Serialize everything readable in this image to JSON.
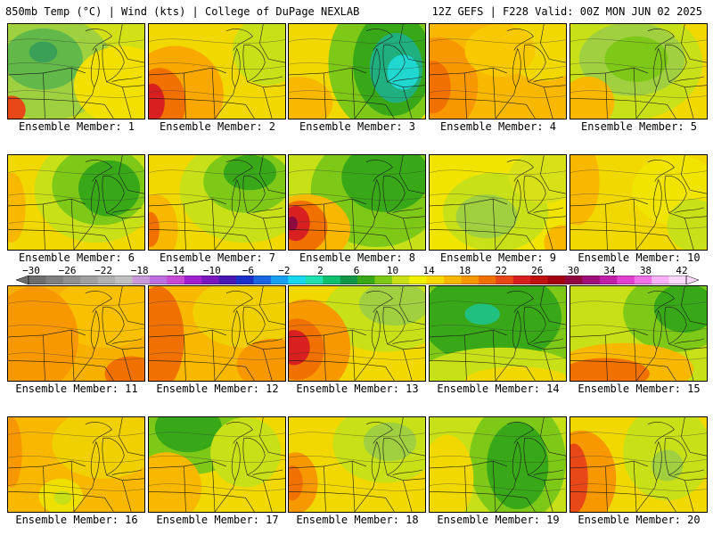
{
  "header": {
    "left": "850mb Temp (°C) | Wind (kts) | College of DuPage NEXLAB",
    "right": "12Z GEFS | F228 Valid: 00Z MON JUN 02 2025"
  },
  "colorbar": {
    "tick_labels": [
      "-30",
      "-26",
      "-22",
      "-18",
      "-14",
      "-10",
      "-6",
      "-2",
      "2",
      "6",
      "10",
      "14",
      "18",
      "22",
      "26",
      "30",
      "34",
      "38",
      "42"
    ],
    "colors": [
      "#6e6e6e",
      "#7f7f7f",
      "#909090",
      "#a0a0a0",
      "#b0b0b0",
      "#c0c0c0",
      "#c89bd8",
      "#bd6fe0",
      "#c64ad6",
      "#a020d0",
      "#7a18c0",
      "#4818b0",
      "#1a30c8",
      "#1a66e0",
      "#18a0f0",
      "#18d8f0",
      "#20e0b0",
      "#10c070",
      "#109848",
      "#38a818",
      "#7ec818",
      "#c8e018",
      "#f0f000",
      "#f8d800",
      "#f8b800",
      "#f89800",
      "#f07000",
      "#e84818",
      "#d82020",
      "#c01010",
      "#a00010",
      "#900840",
      "#a0107a",
      "#c020a8",
      "#e040d0",
      "#f070e8",
      "#f8b0f8",
      "#ffd8ff"
    ]
  },
  "panels": [
    {
      "label": "Ensemble Member: 1",
      "bg": "#d2e018",
      "blobs": [
        {
          "cx": 45,
          "cy": 50,
          "rx": 75,
          "ry": 60,
          "c": "#9fd040"
        },
        {
          "cx": 40,
          "cy": 40,
          "rx": 45,
          "ry": 35,
          "c": "#62b848"
        },
        {
          "cx": 40,
          "cy": 32,
          "rx": 16,
          "ry": 12,
          "c": "#3aa058"
        },
        {
          "cx": 130,
          "cy": 70,
          "rx": 55,
          "ry": 45,
          "c": "#f2e000"
        },
        {
          "cx": 4,
          "cy": 98,
          "rx": 16,
          "ry": 16,
          "c": "#e84818"
        }
      ]
    },
    {
      "label": "Ensemble Member: 2",
      "bg": "#f0d800",
      "blobs": [
        {
          "cx": 30,
          "cy": 80,
          "rx": 55,
          "ry": 55,
          "c": "#f8a800"
        },
        {
          "cx": 12,
          "cy": 90,
          "rx": 30,
          "ry": 40,
          "c": "#f07000"
        },
        {
          "cx": 4,
          "cy": 90,
          "rx": 14,
          "ry": 22,
          "c": "#d82020"
        },
        {
          "cx": 135,
          "cy": 30,
          "rx": 40,
          "ry": 40,
          "c": "#c8e018"
        }
      ]
    },
    {
      "label": "Ensemble Member: 3",
      "bg": "#f0d800",
      "blobs": [
        {
          "cx": 110,
          "cy": 45,
          "rx": 65,
          "ry": 80,
          "c": "#7ec818"
        },
        {
          "cx": 118,
          "cy": 45,
          "rx": 45,
          "ry": 60,
          "c": "#38a818"
        },
        {
          "cx": 122,
          "cy": 50,
          "rx": 30,
          "ry": 40,
          "c": "#20b080"
        },
        {
          "cx": 130,
          "cy": 55,
          "rx": 18,
          "ry": 20,
          "c": "#20d8d0"
        },
        {
          "cx": 10,
          "cy": 90,
          "rx": 40,
          "ry": 30,
          "c": "#f8b800"
        }
      ]
    },
    {
      "label": "Ensemble Member: 4",
      "bg": "#f8b800",
      "blobs": [
        {
          "cx": 10,
          "cy": 70,
          "rx": 45,
          "ry": 55,
          "c": "#f89800"
        },
        {
          "cx": 4,
          "cy": 72,
          "rx": 20,
          "ry": 30,
          "c": "#f07000"
        },
        {
          "cx": 130,
          "cy": 25,
          "rx": 45,
          "ry": 40,
          "c": "#f0d800"
        },
        {
          "cx": 80,
          "cy": 30,
          "rx": 40,
          "ry": 30,
          "c": "#f8c800"
        }
      ]
    },
    {
      "label": "Ensemble Member: 5",
      "bg": "#f0d800",
      "blobs": [
        {
          "cx": 65,
          "cy": 45,
          "rx": 85,
          "ry": 65,
          "c": "#c8e018"
        },
        {
          "cx": 70,
          "cy": 40,
          "rx": 60,
          "ry": 42,
          "c": "#a0d040"
        },
        {
          "cx": 75,
          "cy": 40,
          "rx": 36,
          "ry": 26,
          "c": "#7ec818"
        },
        {
          "cx": 20,
          "cy": 90,
          "rx": 30,
          "ry": 30,
          "c": "#f8b800"
        }
      ]
    },
    {
      "label": "Ensemble Member: 6",
      "bg": "#f0d800",
      "blobs": [
        {
          "cx": 100,
          "cy": 40,
          "rx": 70,
          "ry": 60,
          "c": "#c8e018"
        },
        {
          "cx": 105,
          "cy": 35,
          "rx": 55,
          "ry": 45,
          "c": "#7ec818"
        },
        {
          "cx": 115,
          "cy": 38,
          "rx": 35,
          "ry": 32,
          "c": "#38a818"
        },
        {
          "cx": 4,
          "cy": 60,
          "rx": 16,
          "ry": 40,
          "c": "#f8b800"
        }
      ]
    },
    {
      "label": "Ensemble Member: 7",
      "bg": "#f0d800",
      "blobs": [
        {
          "cx": 110,
          "cy": 40,
          "rx": 75,
          "ry": 60,
          "c": "#c8e018"
        },
        {
          "cx": 112,
          "cy": 30,
          "rx": 50,
          "ry": 36,
          "c": "#7ec818"
        },
        {
          "cx": 115,
          "cy": 20,
          "rx": 30,
          "ry": 20,
          "c": "#38a818"
        },
        {
          "cx": 8,
          "cy": 85,
          "rx": 25,
          "ry": 40,
          "c": "#f8b800"
        },
        {
          "cx": 2,
          "cy": 85,
          "rx": 10,
          "ry": 20,
          "c": "#f07000"
        }
      ]
    },
    {
      "label": "Ensemble Member: 8",
      "bg": "#c8e018",
      "blobs": [
        {
          "cx": 100,
          "cy": 40,
          "rx": 75,
          "ry": 65,
          "c": "#7ec818"
        },
        {
          "cx": 110,
          "cy": 25,
          "rx": 50,
          "ry": 40,
          "c": "#38a818"
        },
        {
          "cx": 20,
          "cy": 85,
          "rx": 50,
          "ry": 40,
          "c": "#f8b800"
        },
        {
          "cx": 14,
          "cy": 82,
          "rx": 30,
          "ry": 30,
          "c": "#f07000"
        },
        {
          "cx": 8,
          "cy": 78,
          "rx": 16,
          "ry": 20,
          "c": "#d82020"
        },
        {
          "cx": 4,
          "cy": 78,
          "rx": 6,
          "ry": 8,
          "c": "#900840"
        }
      ]
    },
    {
      "label": "Ensemble Member: 9",
      "bg": "#f0e400",
      "blobs": [
        {
          "cx": 75,
          "cy": 65,
          "rx": 60,
          "ry": 45,
          "c": "#c8e018"
        },
        {
          "cx": 65,
          "cy": 70,
          "rx": 35,
          "ry": 25,
          "c": "#a0d040"
        },
        {
          "cx": 130,
          "cy": 25,
          "rx": 40,
          "ry": 30,
          "c": "#d8e018"
        },
        {
          "cx": 150,
          "cy": 100,
          "rx": 20,
          "ry": 20,
          "c": "#f8b800"
        }
      ]
    },
    {
      "label": "Ensemble Member: 10",
      "bg": "#f0d800",
      "blobs": [
        {
          "cx": 120,
          "cy": 40,
          "rx": 50,
          "ry": 40,
          "c": "#f0e400"
        },
        {
          "cx": 8,
          "cy": 30,
          "rx": 25,
          "ry": 50,
          "c": "#f8b800"
        },
        {
          "cx": 140,
          "cy": 80,
          "rx": 30,
          "ry": 30,
          "c": "#c8e018"
        }
      ]
    },
    {
      "label": "Ensemble Member: 11",
      "bg": "#f8b000",
      "blobs": [
        {
          "cx": 110,
          "cy": 30,
          "rx": 60,
          "ry": 40,
          "c": "#f8c000"
        },
        {
          "cx": 30,
          "cy": 60,
          "rx": 50,
          "ry": 60,
          "c": "#f89800"
        },
        {
          "cx": 140,
          "cy": 100,
          "rx": 30,
          "ry": 20,
          "c": "#f07000"
        }
      ]
    },
    {
      "label": "Ensemble Member: 12",
      "bg": "#f8b800",
      "blobs": [
        {
          "cx": 110,
          "cy": 30,
          "rx": 60,
          "ry": 40,
          "c": "#f0d000"
        },
        {
          "cx": 10,
          "cy": 60,
          "rx": 30,
          "ry": 60,
          "c": "#f07000"
        },
        {
          "cx": 140,
          "cy": 90,
          "rx": 40,
          "ry": 30,
          "c": "#f89800"
        }
      ]
    },
    {
      "label": "Ensemble Member: 13",
      "bg": "#f0d800",
      "blobs": [
        {
          "cx": 110,
          "cy": 30,
          "rx": 70,
          "ry": 45,
          "c": "#c8e018"
        },
        {
          "cx": 120,
          "cy": 20,
          "rx": 40,
          "ry": 25,
          "c": "#a0d040"
        },
        {
          "cx": 20,
          "cy": 70,
          "rx": 50,
          "ry": 55,
          "c": "#f89800"
        },
        {
          "cx": 10,
          "cy": 72,
          "rx": 30,
          "ry": 35,
          "c": "#f07000"
        },
        {
          "cx": 6,
          "cy": 70,
          "rx": 18,
          "ry": 20,
          "c": "#d82020"
        }
      ]
    },
    {
      "label": "Ensemble Member: 14",
      "bg": "#7ec818",
      "blobs": [
        {
          "cx": 70,
          "cy": 35,
          "rx": 80,
          "ry": 55,
          "c": "#38a818"
        },
        {
          "cx": 60,
          "cy": 32,
          "rx": 20,
          "ry": 12,
          "c": "#20c080"
        },
        {
          "cx": 80,
          "cy": 100,
          "rx": 90,
          "ry": 30,
          "c": "#c8e018"
        },
        {
          "cx": 100,
          "cy": 108,
          "rx": 60,
          "ry": 16,
          "c": "#f0d800"
        }
      ]
    },
    {
      "label": "Ensemble Member: 15",
      "bg": "#c8e018",
      "blobs": [
        {
          "cx": 120,
          "cy": 30,
          "rx": 60,
          "ry": 45,
          "c": "#7ec818"
        },
        {
          "cx": 130,
          "cy": 25,
          "rx": 35,
          "ry": 28,
          "c": "#38a818"
        },
        {
          "cx": 60,
          "cy": 95,
          "rx": 80,
          "ry": 30,
          "c": "#f8b800"
        },
        {
          "cx": 40,
          "cy": 100,
          "rx": 50,
          "ry": 18,
          "c": "#f07000"
        }
      ]
    },
    {
      "label": "Ensemble Member: 16",
      "bg": "#f8b800",
      "blobs": [
        {
          "cx": 110,
          "cy": 30,
          "rx": 60,
          "ry": 40,
          "c": "#f0d000"
        },
        {
          "cx": 60,
          "cy": 90,
          "rx": 25,
          "ry": 20,
          "c": "#f0e000"
        },
        {
          "cx": 62,
          "cy": 92,
          "rx": 10,
          "ry": 8,
          "c": "#c8e018"
        },
        {
          "cx": 4,
          "cy": 40,
          "rx": 12,
          "ry": 40,
          "c": "#f89800"
        }
      ]
    },
    {
      "label": "Ensemble Member: 17",
      "bg": "#f0d800",
      "blobs": [
        {
          "cx": 50,
          "cy": 20,
          "rx": 60,
          "ry": 45,
          "c": "#7ec818"
        },
        {
          "cx": 45,
          "cy": 12,
          "rx": 38,
          "ry": 28,
          "c": "#38a818"
        },
        {
          "cx": 110,
          "cy": 40,
          "rx": 40,
          "ry": 40,
          "c": "#c8e018"
        },
        {
          "cx": 20,
          "cy": 80,
          "rx": 40,
          "ry": 40,
          "c": "#f8b800"
        }
      ]
    },
    {
      "label": "Ensemble Member: 18",
      "bg": "#f0d800",
      "blobs": [
        {
          "cx": 110,
          "cy": 30,
          "rx": 60,
          "ry": 45,
          "c": "#c8e018"
        },
        {
          "cx": 115,
          "cy": 28,
          "rx": 30,
          "ry": 22,
          "c": "#a0d040"
        },
        {
          "cx": 8,
          "cy": 75,
          "rx": 25,
          "ry": 35,
          "c": "#f89800"
        },
        {
          "cx": 4,
          "cy": 75,
          "rx": 12,
          "ry": 20,
          "c": "#f07000"
        }
      ]
    },
    {
      "label": "Ensemble Member: 19",
      "bg": "#c8e018",
      "blobs": [
        {
          "cx": 100,
          "cy": 50,
          "rx": 55,
          "ry": 70,
          "c": "#7ec818"
        },
        {
          "cx": 100,
          "cy": 55,
          "rx": 35,
          "ry": 50,
          "c": "#38a818"
        },
        {
          "cx": 20,
          "cy": 70,
          "rx": 30,
          "ry": 50,
          "c": "#f0d800"
        }
      ]
    },
    {
      "label": "Ensemble Member: 20",
      "bg": "#f0d800",
      "blobs": [
        {
          "cx": 110,
          "cy": 40,
          "rx": 50,
          "ry": 55,
          "c": "#c8e018"
        },
        {
          "cx": 110,
          "cy": 55,
          "rx": 18,
          "ry": 18,
          "c": "#a0d040"
        },
        {
          "cx": 12,
          "cy": 70,
          "rx": 40,
          "ry": 55,
          "c": "#f89800"
        },
        {
          "cx": 4,
          "cy": 70,
          "rx": 16,
          "ry": 40,
          "c": "#e84818"
        }
      ]
    }
  ]
}
